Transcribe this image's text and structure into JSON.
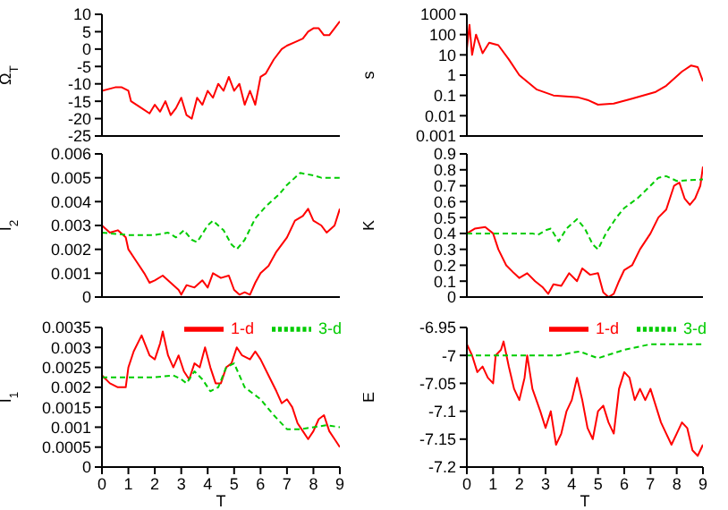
{
  "chart_data": [
    {
      "type": "line",
      "ylabel": "Ω$_{T}$",
      "xlim": [
        0,
        9
      ],
      "xticks": [
        0,
        1,
        2,
        3,
        4,
        5,
        6,
        7,
        8,
        9
      ],
      "ylim": [
        -25,
        10
      ],
      "yticks": [
        -25,
        -20,
        -15,
        -10,
        -5,
        0,
        5,
        10
      ],
      "tick_labels": "y",
      "series": [
        {
          "color": "#ff0000",
          "x": [
            0,
            0.5,
            0.75,
            1,
            1.1,
            1.5,
            1.8,
            2,
            2.2,
            2.4,
            2.6,
            2.8,
            3,
            3.2,
            3.4,
            3.6,
            3.8,
            4,
            4.2,
            4.4,
            4.6,
            4.8,
            5,
            5.2,
            5.4,
            5.6,
            5.8,
            6,
            6.2,
            6.5,
            6.8,
            7,
            7.3,
            7.6,
            7.8,
            8,
            8.2,
            8.4,
            8.6,
            8.8,
            9
          ],
          "values": [
            -12,
            -11,
            -11,
            -12,
            -15,
            -17,
            -18.5,
            -16,
            -18,
            -15,
            -19,
            -17,
            -14,
            -19,
            -20,
            -14,
            -16,
            -12,
            -14,
            -10,
            -12,
            -8,
            -12,
            -10,
            -16,
            -12,
            -16,
            -8,
            -7,
            -3,
            0,
            1,
            2,
            3,
            5,
            6,
            6,
            4,
            4,
            6,
            8
          ]
        }
      ]
    },
    {
      "type": "line",
      "ylabel": "s",
      "log": "y",
      "xlim": [
        0,
        9
      ],
      "xticks": [
        0,
        1,
        2,
        3,
        4,
        5,
        6,
        7,
        8,
        9
      ],
      "ylim": [
        0.001,
        1000
      ],
      "yticks": [
        0.001,
        0.01,
        0.1,
        1,
        10,
        100,
        1000
      ],
      "tick_labels": "y",
      "series": [
        {
          "color": "#ff0000",
          "x": [
            0,
            0.1,
            0.2,
            0.35,
            0.6,
            0.85,
            1.2,
            1.6,
            2,
            2.65,
            3.3,
            4.25,
            4.6,
            5,
            5.6,
            6.3,
            7.2,
            7.6,
            8.2,
            8.55,
            8.8,
            9
          ],
          "values": [
            20,
            300,
            10,
            100,
            12,
            40,
            30,
            6,
            1,
            0.2,
            0.1,
            0.08,
            0.06,
            0.035,
            0.04,
            0.07,
            0.15,
            0.3,
            1.5,
            3,
            2.5,
            0.5
          ]
        }
      ]
    },
    {
      "type": "line",
      "ylabel": "I$_{2}$",
      "xlim": [
        0,
        9
      ],
      "xticks": [
        0,
        1,
        2,
        3,
        4,
        5,
        6,
        7,
        8,
        9
      ],
      "ylim": [
        0,
        0.006
      ],
      "yticks": [
        0,
        0.001,
        0.002,
        0.003,
        0.004,
        0.005,
        0.006
      ],
      "tick_labels": "y",
      "series": [
        {
          "color": "#ff0000",
          "x": [
            0,
            0.3,
            0.6,
            0.9,
            1,
            1.3,
            1.6,
            1.8,
            2,
            2.3,
            2.6,
            2.9,
            3,
            3.2,
            3.5,
            3.8,
            4,
            4.2,
            4.5,
            4.8,
            5,
            5.2,
            5.4,
            5.6,
            5.8,
            6,
            6.3,
            6.6,
            7,
            7.3,
            7.6,
            7.8,
            8,
            8.3,
            8.5,
            8.8,
            9
          ],
          "values": [
            0.003,
            0.0027,
            0.0028,
            0.0025,
            0.002,
            0.0015,
            0.001,
            0.0006,
            0.0007,
            0.0009,
            0.0006,
            0.0003,
            0.0001,
            0.0005,
            0.0004,
            0.0007,
            0.0004,
            0.001,
            0.0008,
            0.0009,
            0.0003,
            0.0001,
            0.0002,
            0.0001,
            0.0006,
            0.001,
            0.0013,
            0.0019,
            0.0025,
            0.0032,
            0.0034,
            0.0037,
            0.0032,
            0.003,
            0.0027,
            0.003,
            0.0037
          ]
        },
        {
          "color": "#00cc00",
          "line_style": "dashed",
          "x": [
            0,
            1,
            2,
            2.5,
            2.8,
            3.1,
            3.4,
            3.6,
            4,
            4.2,
            4.6,
            4.9,
            5.1,
            5.4,
            5.8,
            6.2,
            6.7,
            7,
            7.5,
            8,
            8.3,
            9
          ],
          "values": [
            0.0027,
            0.0026,
            0.0026,
            0.0027,
            0.0025,
            0.0028,
            0.0024,
            0.0023,
            0.003,
            0.0032,
            0.0028,
            0.0022,
            0.002,
            0.0024,
            0.0033,
            0.0038,
            0.0043,
            0.0047,
            0.0052,
            0.0051,
            0.005,
            0.005
          ]
        }
      ]
    },
    {
      "type": "line",
      "ylabel": "K",
      "xlim": [
        0,
        9
      ],
      "xticks": [
        0,
        1,
        2,
        3,
        4,
        5,
        6,
        7,
        8,
        9
      ],
      "ylim": [
        0,
        0.9
      ],
      "yticks": [
        0,
        0.1,
        0.2,
        0.3,
        0.4,
        0.5,
        0.6,
        0.7,
        0.8,
        0.9
      ],
      "tick_labels": "y",
      "series": [
        {
          "color": "#ff0000",
          "x": [
            0,
            0.3,
            0.7,
            1,
            1.2,
            1.5,
            1.8,
            2,
            2.3,
            2.6,
            2.9,
            3.1,
            3.3,
            3.6,
            3.9,
            4.2,
            4.4,
            4.7,
            5,
            5.2,
            5.4,
            5.6,
            5.8,
            6,
            6.3,
            6.6,
            7,
            7.3,
            7.6,
            7.9,
            8.1,
            8.3,
            8.5,
            8.7,
            8.9,
            9
          ],
          "values": [
            0.4,
            0.43,
            0.44,
            0.4,
            0.3,
            0.2,
            0.15,
            0.12,
            0.15,
            0.1,
            0.06,
            0.02,
            0.08,
            0.07,
            0.15,
            0.1,
            0.18,
            0.14,
            0.15,
            0.03,
            0,
            0.02,
            0.1,
            0.17,
            0.2,
            0.3,
            0.4,
            0.5,
            0.55,
            0.7,
            0.72,
            0.62,
            0.58,
            0.62,
            0.7,
            0.82
          ]
        },
        {
          "color": "#00cc00",
          "line_style": "dashed",
          "x": [
            0,
            1,
            2,
            2.5,
            2.7,
            3,
            3.2,
            3.5,
            3.8,
            4.2,
            4.5,
            4.8,
            5,
            5.3,
            5.7,
            6,
            6.5,
            7,
            7.3,
            7.6,
            8,
            9
          ],
          "values": [
            0.4,
            0.4,
            0.4,
            0.4,
            0.39,
            0.42,
            0.43,
            0.35,
            0.43,
            0.49,
            0.43,
            0.33,
            0.3,
            0.4,
            0.5,
            0.56,
            0.62,
            0.7,
            0.75,
            0.76,
            0.73,
            0.74
          ]
        }
      ]
    },
    {
      "type": "line",
      "ylabel": "I$_{1}$",
      "xlabel": "T",
      "legend": "top",
      "xlim": [
        0,
        9
      ],
      "xticks": [
        0,
        1,
        2,
        3,
        4,
        5,
        6,
        7,
        8,
        9
      ],
      "ylim": [
        0,
        0.0035
      ],
      "yticks": [
        0,
        0.0005,
        0.001,
        0.0015,
        0.002,
        0.0025,
        0.003,
        0.0035
      ],
      "series": [
        {
          "name": "1-d",
          "color": "#ff0000",
          "x": [
            0,
            0.3,
            0.6,
            0.9,
            1,
            1.2,
            1.5,
            1.8,
            2,
            2.2,
            2.3,
            2.5,
            2.7,
            2.9,
            3.1,
            3.3,
            3.5,
            3.7,
            3.9,
            4.1,
            4.3,
            4.5,
            4.7,
            4.9,
            5.1,
            5.3,
            5.6,
            5.8,
            6,
            6.3,
            6.6,
            6.8,
            7,
            7.2,
            7.4,
            7.6,
            7.8,
            8,
            8.2,
            8.4,
            8.6,
            8.8,
            9
          ],
          "values": [
            0.0023,
            0.0021,
            0.002,
            0.002,
            0.0025,
            0.0029,
            0.0033,
            0.0028,
            0.0027,
            0.0031,
            0.0034,
            0.0028,
            0.0025,
            0.0028,
            0.0024,
            0.0022,
            0.0026,
            0.0025,
            0.003,
            0.0025,
            0.0021,
            0.0021,
            0.0025,
            0.0026,
            0.003,
            0.0028,
            0.0027,
            0.0029,
            0.0027,
            0.0023,
            0.0019,
            0.0016,
            0.0017,
            0.0015,
            0.0011,
            0.0009,
            0.0007,
            0.0009,
            0.0012,
            0.0013,
            0.0009,
            0.0007,
            0.0005
          ]
        },
        {
          "name": "3-d",
          "color": "#00cc00",
          "line_style": "dashed",
          "x": [
            0,
            1,
            2,
            2.7,
            3,
            3.2,
            3.5,
            3.8,
            4.1,
            4.4,
            4.7,
            5,
            5.4,
            6,
            6.5,
            7,
            7.5,
            8,
            8.5,
            9
          ],
          "values": [
            0.00225,
            0.00225,
            0.00225,
            0.0023,
            0.0022,
            0.0021,
            0.0024,
            0.0022,
            0.0019,
            0.002,
            0.0025,
            0.0026,
            0.002,
            0.0017,
            0.0013,
            0.00095,
            0.00095,
            0.001,
            0.00105,
            0.001
          ]
        }
      ]
    },
    {
      "type": "line",
      "ylabel": "E",
      "xlabel": "T",
      "legend": "top",
      "xlim": [
        0,
        9
      ],
      "xticks": [
        0,
        1,
        2,
        3,
        4,
        5,
        6,
        7,
        8,
        9
      ],
      "ylim": [
        -7.2,
        -6.95
      ],
      "yticks": [
        -7.2,
        -7.15,
        -7.1,
        -7.05,
        -7,
        -6.95
      ],
      "series": [
        {
          "name": "1-d",
          "color": "#ff0000",
          "x": [
            0,
            0.2,
            0.4,
            0.6,
            0.8,
            1,
            1.1,
            1.3,
            1.4,
            1.6,
            1.8,
            2,
            2.2,
            2.3,
            2.5,
            2.8,
            3,
            3.2,
            3.4,
            3.6,
            3.8,
            4,
            4.2,
            4.4,
            4.6,
            4.8,
            5,
            5.2,
            5.4,
            5.6,
            5.8,
            6,
            6.2,
            6.4,
            6.6,
            6.8,
            7,
            7.2,
            7.4,
            7.6,
            7.8,
            8,
            8.2,
            8.4,
            8.6,
            8.8,
            9
          ],
          "values": [
            -6.98,
            -7,
            -7.03,
            -7.02,
            -7.04,
            -7.05,
            -7,
            -6.99,
            -6.975,
            -7.02,
            -7.06,
            -7.08,
            -7.04,
            -7,
            -7.06,
            -7.1,
            -7.13,
            -7.1,
            -7.16,
            -7.14,
            -7.1,
            -7.08,
            -7.04,
            -7.08,
            -7.13,
            -7.15,
            -7.1,
            -7.09,
            -7.12,
            -7.14,
            -7.06,
            -7.03,
            -7.04,
            -7.08,
            -7.06,
            -7.08,
            -7.06,
            -7.09,
            -7.12,
            -7.14,
            -7.16,
            -7.14,
            -7.12,
            -7.13,
            -7.17,
            -7.18,
            -7.16
          ]
        },
        {
          "name": "3-d",
          "color": "#00cc00",
          "line_style": "dashed",
          "x": [
            0,
            3,
            3.5,
            4,
            4.3,
            5,
            6,
            7,
            8,
            9
          ],
          "values": [
            -7,
            -7,
            -7,
            -6.995,
            -6.993,
            -7.005,
            -6.99,
            -6.98,
            -6.98,
            -6.98
          ]
        }
      ]
    }
  ]
}
